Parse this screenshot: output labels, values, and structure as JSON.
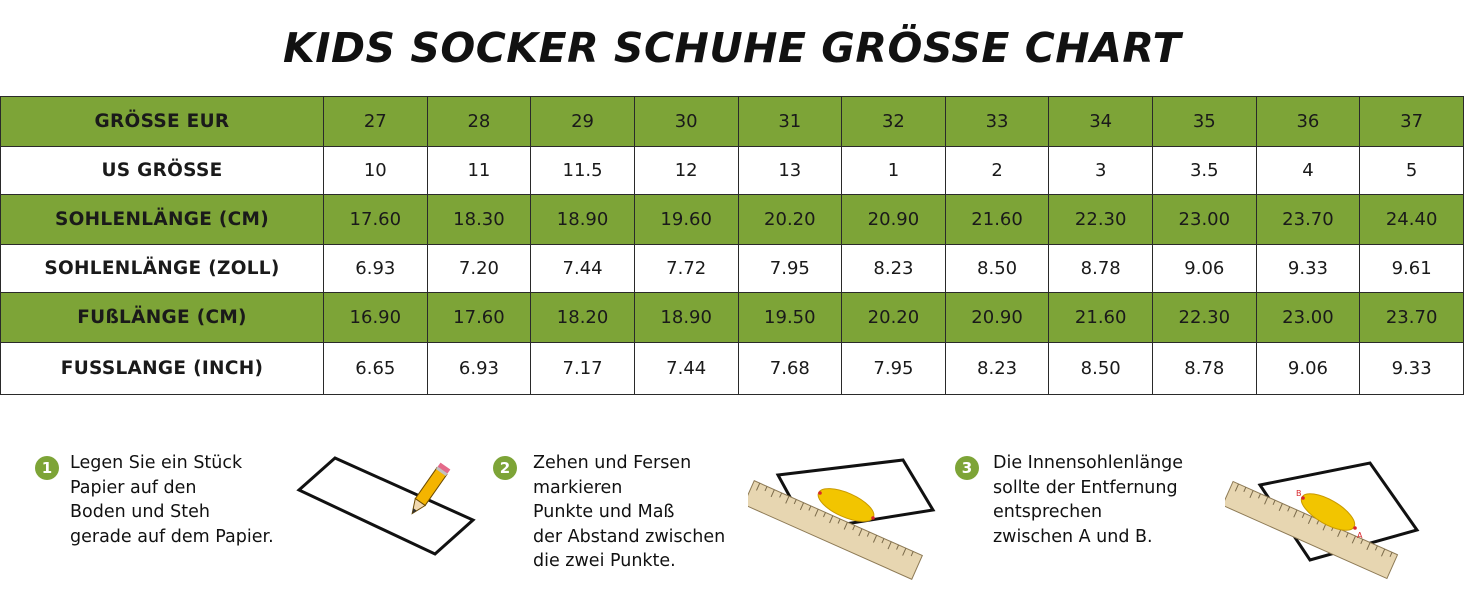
{
  "title": "KIDS SOCKER SCHUHE GRÖSSE CHART",
  "chart_data": {
    "type": "table",
    "title": "KIDS SOCKER SCHUHE GRÖSSE CHART",
    "rows": [
      {
        "label": "GRÖSSE EUR",
        "values": [
          "27",
          "28",
          "29",
          "30",
          "31",
          "32",
          "33",
          "34",
          "35",
          "36",
          "37"
        ]
      },
      {
        "label": "US GRÖSSE",
        "values": [
          "10",
          "11",
          "11.5",
          "12",
          "13",
          "1",
          "2",
          "3",
          "3.5",
          "4",
          "5"
        ]
      },
      {
        "label": "SOHLENLÄNGE (CM)",
        "values": [
          "17.60",
          "18.30",
          "18.90",
          "19.60",
          "20.20",
          "20.90",
          "21.60",
          "22.30",
          "23.00",
          "23.70",
          "24.40"
        ]
      },
      {
        "label": "SOHLENLÄNGE (ZOLL)",
        "values": [
          "6.93",
          "7.20",
          "7.44",
          "7.72",
          "7.95",
          "8.23",
          "8.50",
          "8.78",
          "9.06",
          "9.33",
          "9.61"
        ]
      },
      {
        "label": "FUßLÄNGE (CM)",
        "values": [
          "16.90",
          "17.60",
          "18.20",
          "18.90",
          "19.50",
          "20.20",
          "20.90",
          "21.60",
          "22.30",
          "23.00",
          "23.70"
        ]
      },
      {
        "label": "FUSSLANGE (INCH)",
        "values": [
          "6.65",
          "6.93",
          "7.17",
          "7.44",
          "7.68",
          "7.95",
          "8.23",
          "8.50",
          "8.78",
          "9.06",
          "9.33"
        ]
      }
    ],
    "row_colors": [
      "#7da437",
      "#ffffff",
      "#7da437",
      "#ffffff",
      "#7da437",
      "#ffffff"
    ]
  },
  "steps": [
    {
      "number": "1",
      "lines": [
        "Legen Sie ein Stück",
        "Papier auf den",
        "Boden und Steh",
        "gerade auf dem Papier."
      ],
      "icon": "pencil-on-paper-icon"
    },
    {
      "number": "2",
      "lines": [
        "Zehen und Fersen",
        "markieren",
        "Punkte und Maß",
        "der Abstand zwischen",
        "die zwei Punkte."
      ],
      "icon": "ruler-footprint-icon"
    },
    {
      "number": "3",
      "lines": [
        "Die Innensohlenlänge",
        "sollte der Entfernung",
        "entsprechen",
        "zwischen A und B."
      ],
      "icon": "ruler-footprint-ab-icon",
      "marker_labels": [
        "B",
        "A"
      ]
    }
  ],
  "colors": {
    "accent_green": "#7da437",
    "foot_yellow": "#f2c500",
    "marker_red": "#d8262b"
  }
}
